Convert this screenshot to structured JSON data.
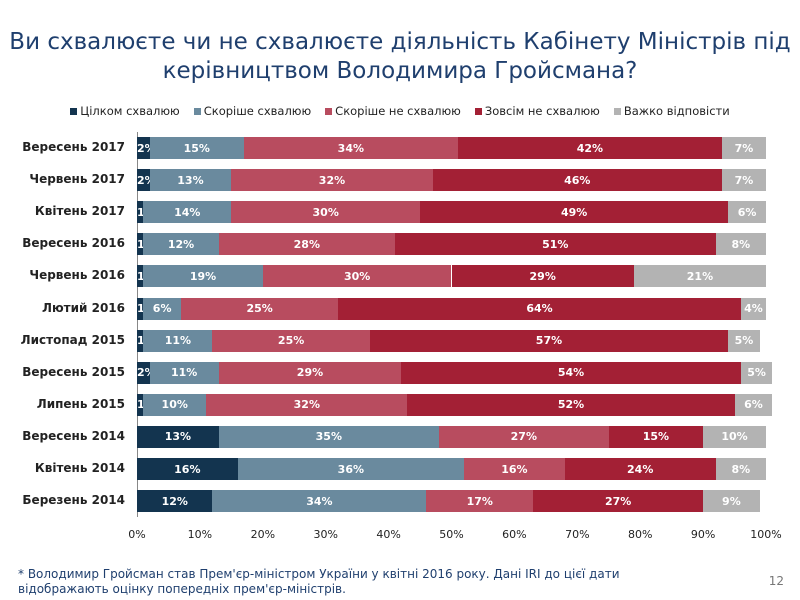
{
  "title": "Ви схвалюєте чи не схвалюєте діяльність Кабінету Міністрів під керівництвом Володимира Гройсмана?",
  "footnote": "* Володимир Гройсман став Прем'єр-міністром України у квітні 2016 року. Дані IRI до цієї дати відображають оцінку попередніх прем'єр-міністрів.",
  "page_number": "12",
  "chart_data": {
    "type": "bar",
    "orientation": "horizontal",
    "stacked": true,
    "categories": [
      "Вересень 2017",
      "Червень 2017",
      "Квітень 2017",
      "Вересень 2016",
      "Червень 2016",
      "Лютий 2016",
      "Листопад 2015",
      "Вересень 2015",
      "Липень 2015",
      "Вересень 2014",
      "Квітень 2014",
      "Березень 2014"
    ],
    "series": [
      {
        "name": "Цілком схвалюю",
        "color": "#13344f",
        "values": [
          2,
          2,
          1,
          1,
          1,
          1,
          1,
          2,
          1,
          13,
          16,
          12
        ]
      },
      {
        "name": "Скоріше схвалюю",
        "color": "#6a8a9e",
        "values": [
          15,
          13,
          14,
          12,
          19,
          6,
          11,
          11,
          10,
          35,
          36,
          34
        ]
      },
      {
        "name": "Скоріше не схвалюю",
        "color": "#b84c5f",
        "values": [
          34,
          32,
          30,
          28,
          30,
          25,
          25,
          29,
          32,
          27,
          16,
          17
        ]
      },
      {
        "name": "Зовсім не схвалюю",
        "color": "#a32035",
        "values": [
          42,
          46,
          49,
          51,
          29,
          64,
          57,
          54,
          52,
          15,
          24,
          27
        ]
      },
      {
        "name": "Важко відповісти",
        "color": "#b3b3b3",
        "values": [
          7,
          7,
          6,
          8,
          21,
          4,
          5,
          5,
          6,
          10,
          8,
          9
        ]
      }
    ],
    "xticks": [
      "0%",
      "10%",
      "20%",
      "30%",
      "40%",
      "50%",
      "60%",
      "70%",
      "80%",
      "90%",
      "100%"
    ],
    "xlim": [
      0,
      100
    ],
    "legend": "top",
    "grid": false
  }
}
